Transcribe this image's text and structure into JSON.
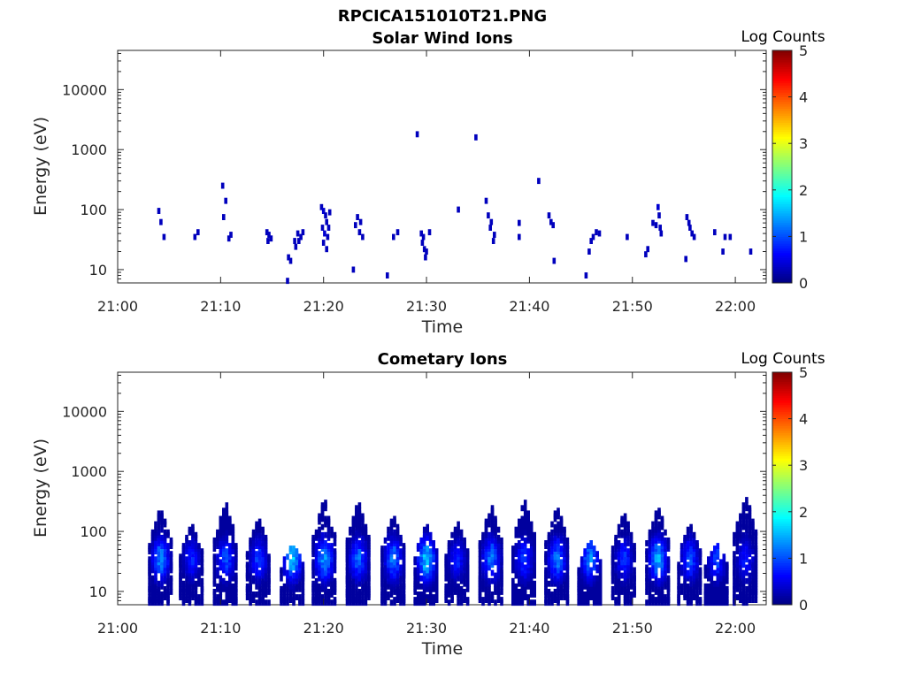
{
  "figure": {
    "title": "RPCICA151010T21.PNG"
  },
  "chart_data": [
    {
      "type": "heatmap",
      "title": "Solar Wind Ions",
      "xlabel": "Time",
      "ylabel": "Energy (eV)",
      "xlim": [
        "21:00",
        "22:03"
      ],
      "ylim": [
        6,
        45000
      ],
      "yscale": "log",
      "xticks": [
        "21:00",
        "21:10",
        "21:20",
        "21:30",
        "21:40",
        "21:50",
        "22:00"
      ],
      "yticks": [
        {
          "value": 10,
          "label": "10"
        },
        {
          "value": 100,
          "label": "100"
        },
        {
          "value": 1000,
          "label": "1000"
        },
        {
          "value": 10000,
          "label": "10000"
        }
      ],
      "colorbar": {
        "label": "Log Counts",
        "min": 0,
        "max": 5,
        "ticks": [
          "0",
          "1",
          "2",
          "3",
          "4",
          "5"
        ],
        "colormap": "jet"
      },
      "points": [
        [
          4.0,
          95,
          0.3
        ],
        [
          4.2,
          62,
          0.3
        ],
        [
          4.5,
          35,
          0.3
        ],
        [
          7.5,
          35,
          0.3
        ],
        [
          7.8,
          42,
          0.3
        ],
        [
          10.2,
          250,
          0.3
        ],
        [
          10.5,
          140,
          0.3
        ],
        [
          10.3,
          75,
          0.3
        ],
        [
          11.0,
          38,
          0.3
        ],
        [
          10.8,
          33,
          0.3
        ],
        [
          14.5,
          42,
          0.3
        ],
        [
          14.7,
          38,
          0.3
        ],
        [
          14.9,
          33,
          0.3
        ],
        [
          14.6,
          30,
          0.3
        ],
        [
          16.6,
          16,
          0.3
        ],
        [
          16.8,
          14,
          0.3
        ],
        [
          16.5,
          6.5,
          0.3
        ],
        [
          17.2,
          30,
          0.3
        ],
        [
          17.3,
          24,
          0.3
        ],
        [
          17.5,
          40,
          0.3
        ],
        [
          17.8,
          35,
          0.3
        ],
        [
          18.0,
          42,
          0.3
        ],
        [
          17.6,
          30,
          0.3
        ],
        [
          19.8,
          110,
          0.3
        ],
        [
          20.0,
          95,
          0.4
        ],
        [
          20.2,
          80,
          0.3
        ],
        [
          20.3,
          62,
          0.3
        ],
        [
          19.9,
          50,
          0.3
        ],
        [
          20.1,
          40,
          0.4
        ],
        [
          20.4,
          35,
          0.3
        ],
        [
          20.0,
          28,
          0.3
        ],
        [
          20.3,
          22,
          0.3
        ],
        [
          20.6,
          90,
          0.3
        ],
        [
          20.5,
          50,
          0.3
        ],
        [
          22.9,
          10,
          0.3
        ],
        [
          23.3,
          75,
          0.3
        ],
        [
          23.6,
          62,
          0.3
        ],
        [
          23.1,
          55,
          0.3
        ],
        [
          23.5,
          42,
          0.3
        ],
        [
          23.8,
          35,
          0.3
        ],
        [
          26.2,
          8,
          0.3
        ],
        [
          26.8,
          35,
          0.3
        ],
        [
          27.2,
          42,
          0.3
        ],
        [
          29.1,
          1800,
          0.3
        ],
        [
          29.5,
          40,
          0.3
        ],
        [
          29.7,
          35,
          0.3
        ],
        [
          29.6,
          28,
          0.3
        ],
        [
          29.8,
          22,
          0.3
        ],
        [
          30.0,
          20,
          0.3
        ],
        [
          29.9,
          16,
          0.3
        ],
        [
          30.3,
          42,
          0.3
        ],
        [
          33.1,
          100,
          0.3
        ],
        [
          34.8,
          1600,
          0.3
        ],
        [
          35.8,
          140,
          0.3
        ],
        [
          36.0,
          80,
          0.3
        ],
        [
          36.3,
          62,
          0.3
        ],
        [
          36.2,
          50,
          0.3
        ],
        [
          36.6,
          38,
          0.3
        ],
        [
          36.5,
          30,
          0.3
        ],
        [
          39.0,
          60,
          0.3
        ],
        [
          39.0,
          35,
          0.3
        ],
        [
          40.9,
          300,
          0.3
        ],
        [
          41.9,
          80,
          0.3
        ],
        [
          42.1,
          62,
          0.3
        ],
        [
          42.3,
          55,
          0.3
        ],
        [
          42.4,
          14,
          0.3
        ],
        [
          45.5,
          8,
          0.3
        ],
        [
          45.8,
          20,
          0.3
        ],
        [
          46.0,
          30,
          0.3
        ],
        [
          46.2,
          35,
          0.3
        ],
        [
          46.5,
          42,
          0.3
        ],
        [
          46.8,
          40,
          0.3
        ],
        [
          49.5,
          35,
          0.3
        ],
        [
          52.0,
          60,
          0.3
        ],
        [
          52.3,
          55,
          0.3
        ],
        [
          52.5,
          110,
          0.4
        ],
        [
          52.6,
          80,
          0.3
        ],
        [
          52.7,
          50,
          0.3
        ],
        [
          52.8,
          40,
          0.3
        ],
        [
          51.5,
          22,
          0.3
        ],
        [
          51.3,
          18,
          0.3
        ],
        [
          55.3,
          75,
          0.3
        ],
        [
          55.5,
          60,
          0.3
        ],
        [
          55.6,
          50,
          0.3
        ],
        [
          55.8,
          40,
          0.3
        ],
        [
          56.0,
          35,
          0.3
        ],
        [
          55.2,
          15,
          0.3
        ],
        [
          58.0,
          42,
          0.3
        ],
        [
          59.0,
          35,
          0.3
        ],
        [
          59.5,
          35,
          0.3
        ],
        [
          58.8,
          20,
          0.3
        ],
        [
          61.5,
          20,
          0.3
        ]
      ]
    },
    {
      "type": "heatmap",
      "title": "Cometary Ions",
      "xlabel": "Time",
      "ylabel": "Energy (eV)",
      "xlim": [
        "21:00",
        "22:03"
      ],
      "ylim": [
        6,
        45000
      ],
      "yscale": "log",
      "xticks": [
        "21:00",
        "21:10",
        "21:20",
        "21:30",
        "21:40",
        "21:50",
        "22:00"
      ],
      "yticks": [
        {
          "value": 10,
          "label": "10"
        },
        {
          "value": 100,
          "label": "100"
        },
        {
          "value": 1000,
          "label": "1000"
        },
        {
          "value": 10000,
          "label": "10000"
        }
      ],
      "colorbar": {
        "label": "Log Counts",
        "min": 0,
        "max": 5,
        "ticks": [
          "0",
          "1",
          "2",
          "3",
          "4",
          "5"
        ],
        "colormap": "jet"
      },
      "bursts": [
        {
          "t": 4.2,
          "peak": 1.4,
          "e_hi": 250
        },
        {
          "t": 7.2,
          "peak": 0.8,
          "e_hi": 120
        },
        {
          "t": 10.5,
          "peak": 1.1,
          "e_hi": 300
        },
        {
          "t": 13.7,
          "peak": 1.0,
          "e_hi": 160
        },
        {
          "t": 17.0,
          "peak": 1.7,
          "e_hi": 60
        },
        {
          "t": 20.1,
          "peak": 1.5,
          "e_hi": 350
        },
        {
          "t": 23.4,
          "peak": 1.2,
          "e_hi": 300
        },
        {
          "t": 26.8,
          "peak": 1.3,
          "e_hi": 180
        },
        {
          "t": 30.0,
          "peak": 1.8,
          "e_hi": 120
        },
        {
          "t": 33.0,
          "peak": 0.8,
          "e_hi": 140
        },
        {
          "t": 36.3,
          "peak": 1.3,
          "e_hi": 280
        },
        {
          "t": 39.5,
          "peak": 1.0,
          "e_hi": 320
        },
        {
          "t": 42.7,
          "peak": 1.3,
          "e_hi": 250
        },
        {
          "t": 45.9,
          "peak": 1.4,
          "e_hi": 70
        },
        {
          "t": 49.2,
          "peak": 0.9,
          "e_hi": 200
        },
        {
          "t": 52.5,
          "peak": 1.6,
          "e_hi": 250
        },
        {
          "t": 55.6,
          "peak": 1.1,
          "e_hi": 120
        },
        {
          "t": 58.2,
          "peak": 1.0,
          "e_hi": 60
        },
        {
          "t": 61.0,
          "peak": 0.8,
          "e_hi": 400
        }
      ]
    }
  ]
}
